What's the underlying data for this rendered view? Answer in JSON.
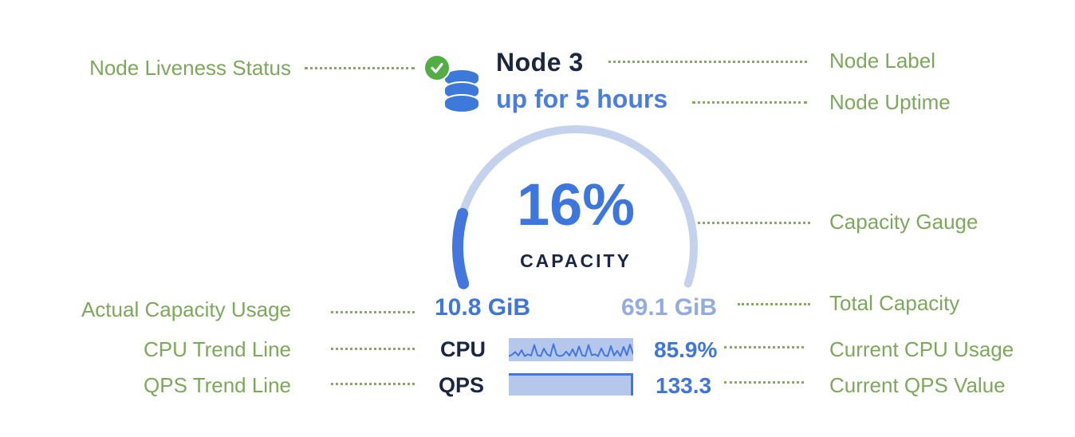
{
  "annotations": {
    "color": "#7da85c",
    "left": [
      {
        "label": "Node Liveness Status"
      },
      {
        "label": "Actual Capacity Usage"
      },
      {
        "label": "CPU Trend Line"
      },
      {
        "label": "QPS Trend Line"
      }
    ],
    "right": [
      {
        "label": "Node Label"
      },
      {
        "label": "Node Uptime"
      },
      {
        "label": "Capacity Gauge"
      },
      {
        "label": "Total Capacity"
      },
      {
        "label": "Current CPU Usage"
      },
      {
        "label": "Current QPS Value"
      }
    ]
  },
  "node_card": {
    "name": "Node 3",
    "uptime": "up for 5 hours",
    "liveness_icon": "check-circle",
    "node_icon": "database",
    "gauge": {
      "percent_label": "16%",
      "percent_value": 16,
      "caption": "CAPACITY",
      "used_label": "10.8 GiB",
      "total_label": "69.1 GiB",
      "sweep_degrees": 216,
      "start_angle_degrees": 162
    },
    "cpu": {
      "label": "CPU",
      "value": "85.9%"
    },
    "qps": {
      "label": "QPS",
      "value": "133.3"
    }
  },
  "chart_data": [
    {
      "type": "area",
      "title": "Capacity Gauge",
      "series": [
        {
          "name": "capacity_used_percent",
          "values": [
            16
          ]
        }
      ],
      "annotations": [
        "16%",
        "CAPACITY",
        "10.8 GiB",
        "69.1 GiB"
      ]
    },
    {
      "type": "line",
      "title": "CPU trend sparkline",
      "series": [
        {
          "name": "cpu_trend_normalized",
          "values": [
            0.22,
            0.28,
            0.4,
            0.25,
            0.48,
            0.22,
            0.3,
            0.24,
            0.7,
            0.26,
            0.22,
            0.55,
            0.3,
            0.22,
            0.74,
            0.27,
            0.22,
            0.26,
            0.42,
            0.24,
            0.52,
            0.22,
            0.64,
            0.26,
            0.22,
            0.7,
            0.26,
            0.3,
            0.22,
            0.56,
            0.26,
            0.22,
            0.66,
            0.25,
            0.45,
            0.22,
            0.62,
            0.26,
            0.72,
            0.3
          ]
        }
      ],
      "current_value": "85.9%"
    },
    {
      "type": "area",
      "title": "QPS trend (flat at current level)",
      "series": [
        {
          "name": "qps_trend_normalized",
          "values": [
            1,
            1,
            1,
            1,
            1,
            1,
            1,
            1,
            1,
            1
          ]
        }
      ],
      "current_value": "133.3"
    }
  ],
  "colors": {
    "annotation_green": "#7da85c",
    "liveness_green": "#54ac47",
    "navy_text": "#1b2742",
    "blue_text": "#4076d9",
    "uptime_blue": "#497de0",
    "total_capacity_light_blue": "#94abe0",
    "gauge_track": "#c5d2ed",
    "gauge_fill": "#4377dd",
    "chart_background": "#b6c7ec",
    "database_icon_blue": "#3c79d8"
  }
}
